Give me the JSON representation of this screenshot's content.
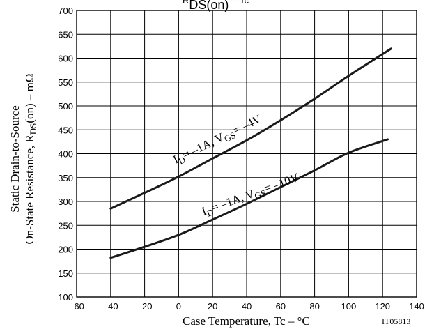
{
  "chart_data": {
    "type": "line",
    "title_main": "R",
    "title_sub": "DS(on)",
    "title_rest": "   --   Tc",
    "xlabel": "Case Temperature, Tc  –  °C",
    "ylabel_line1": "Static Drain-to-Source",
    "ylabel_line2_pre": "On-State Resistance, R",
    "ylabel_line2_sub": "DS",
    "ylabel_line2_post": "(on)  –  mΩ",
    "code": "IT05813",
    "xlim": [
      -60,
      140
    ],
    "ylim": [
      100,
      700
    ],
    "xticks": [
      "–60",
      "–40",
      "–20",
      "0",
      "20",
      "40",
      "60",
      "80",
      "100",
      "120",
      "140"
    ],
    "yticks": [
      "100",
      "150",
      "200",
      "250",
      "300",
      "350",
      "400",
      "450",
      "500",
      "550",
      "600",
      "650",
      "700"
    ],
    "grid": true,
    "series": [
      {
        "label_main": "I",
        "label_sub1": "D",
        "label_mid": "= –1A, V",
        "label_sub2": "GS",
        "label_end": "= –4V",
        "x": [
          -40,
          -20,
          0,
          20,
          40,
          60,
          80,
          100,
          125
        ],
        "y": [
          285,
          318,
          352,
          390,
          428,
          470,
          515,
          563,
          620
        ]
      },
      {
        "label_main": "I",
        "label_sub1": "D",
        "label_mid": "= –1A, V",
        "label_sub2": "GS",
        "label_end": "= –10V",
        "x": [
          -40,
          -20,
          0,
          20,
          40,
          60,
          80,
          100,
          123
        ],
        "y": [
          182,
          205,
          230,
          262,
          295,
          330,
          365,
          402,
          430
        ]
      }
    ]
  }
}
